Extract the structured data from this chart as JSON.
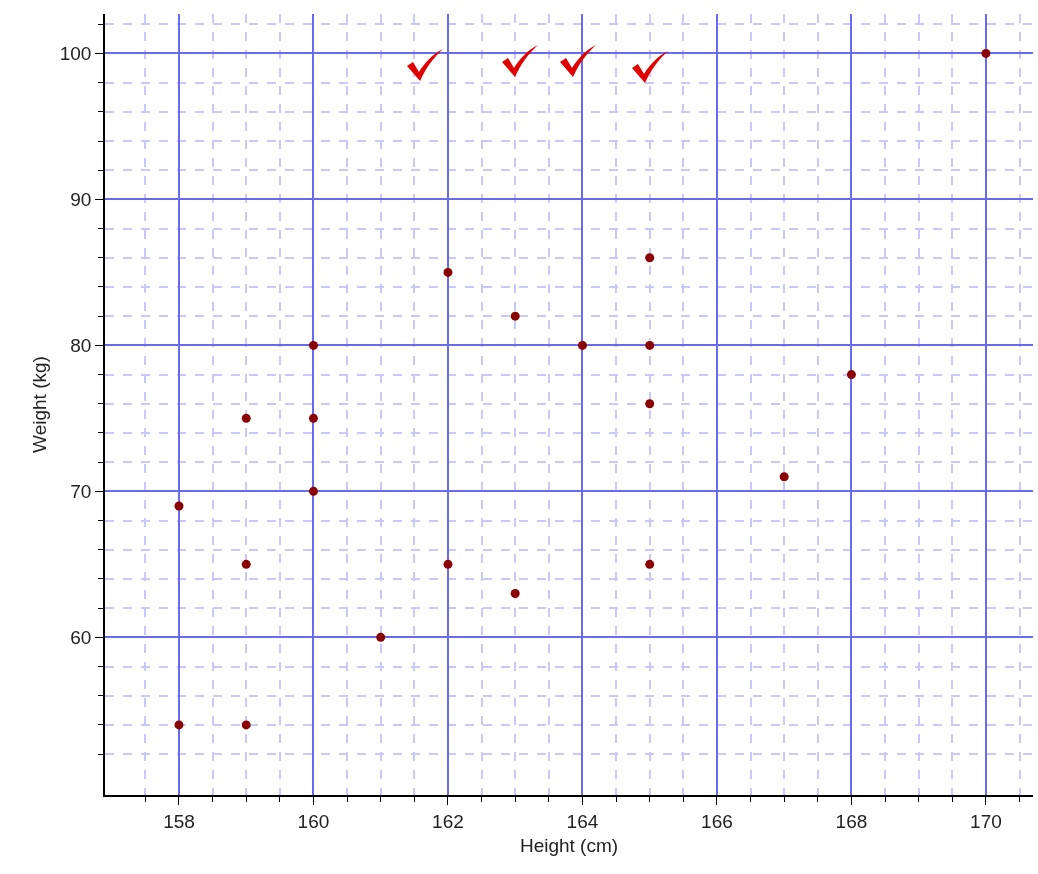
{
  "chart_data": {
    "type": "scatter",
    "xlabel": "Height (cm)",
    "ylabel": "Weight (kg)",
    "x": [
      158,
      159,
      158,
      159,
      159,
      160,
      160,
      160,
      161,
      162,
      162,
      163,
      163,
      164,
      165,
      165,
      165,
      165,
      167,
      168,
      170
    ],
    "values": [
      54,
      54,
      69,
      75,
      65,
      80,
      75,
      70,
      60,
      85,
      65,
      82,
      63,
      80,
      86,
      80,
      76,
      65,
      71,
      78,
      100
    ],
    "color": "#8b0000",
    "marker": "circle",
    "grid": true,
    "xlim": [
      156.9,
      170.7
    ],
    "xticks": [
      {
        "value": 157.5,
        "label": null
      },
      158,
      {
        "value": 158.5,
        "label": null
      },
      {
        "value": 159,
        "label": null
      },
      {
        "value": 159.5,
        "label": null
      },
      160,
      {
        "value": 160.5,
        "label": null
      },
      {
        "value": 161,
        "label": null
      },
      {
        "value": 161.5,
        "label": null
      },
      162,
      {
        "value": 162.5,
        "label": null
      },
      {
        "value": 163,
        "label": null
      },
      {
        "value": 163.5,
        "label": null
      },
      164,
      {
        "value": 164.5,
        "label": null
      },
      {
        "value": 165,
        "label": null
      },
      {
        "value": 165.5,
        "label": null
      },
      166,
      {
        "value": 166.5,
        "label": null
      },
      {
        "value": 167,
        "label": null
      },
      {
        "value": 167.5,
        "label": null
      },
      168,
      {
        "value": 168.5,
        "label": null
      },
      {
        "value": 169,
        "label": null
      },
      {
        "value": 169.5,
        "label": null
      },
      170,
      {
        "value": 170.5,
        "label": null
      }
    ],
    "ylim": [
      49.2,
      102.7
    ],
    "yticks": [
      {
        "value": 52,
        "label": null
      },
      {
        "value": 54,
        "label": null
      },
      {
        "value": 56,
        "label": null
      },
      {
        "value": 58,
        "label": null
      },
      60,
      {
        "value": 62,
        "label": null
      },
      {
        "value": 64,
        "label": null
      },
      {
        "value": 66,
        "label": null
      },
      {
        "value": 68,
        "label": null
      },
      70,
      {
        "value": 72,
        "label": null
      },
      {
        "value": 74,
        "label": null
      },
      {
        "value": 76,
        "label": null
      },
      {
        "value": 78,
        "label": null
      },
      80,
      {
        "value": 82,
        "label": null
      },
      {
        "value": 84,
        "label": null
      },
      {
        "value": 86,
        "label": null
      },
      {
        "value": 88,
        "label": null
      },
      90,
      {
        "value": 92,
        "label": null
      },
      {
        "value": 94,
        "label": null
      },
      {
        "value": 96,
        "label": null
      },
      {
        "value": 98,
        "label": null
      },
      100,
      {
        "value": 102,
        "label": null
      }
    ]
  }
}
